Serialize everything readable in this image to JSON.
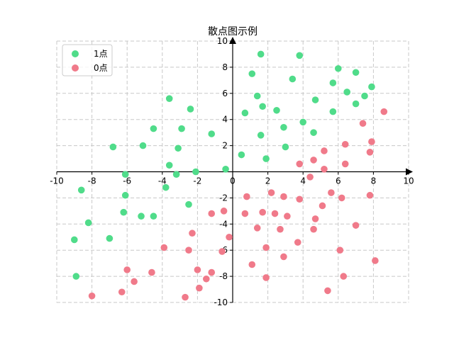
{
  "chart_data": {
    "type": "scatter",
    "title": "散点图示例",
    "xlabel": "",
    "ylabel": "",
    "xlim": [
      -10,
      10
    ],
    "ylim": [
      -10,
      10
    ],
    "x_ticks": [
      -10,
      -8,
      -6,
      -4,
      -2,
      0,
      2,
      4,
      6,
      8,
      10
    ],
    "y_ticks": [
      -10,
      -8,
      -6,
      -4,
      -2,
      0,
      2,
      4,
      6,
      8,
      10
    ],
    "grid": true,
    "legend_position": "top-left",
    "series": [
      {
        "name": "1点",
        "color": "#50dc8a",
        "points": [
          [
            1.6,
            9.0
          ],
          [
            3.8,
            8.9
          ],
          [
            6.0,
            7.9
          ],
          [
            7.0,
            7.6
          ],
          [
            1.1,
            7.5
          ],
          [
            3.4,
            7.1
          ],
          [
            5.7,
            6.8
          ],
          [
            7.9,
            6.5
          ],
          [
            6.5,
            6.1
          ],
          [
            7.5,
            5.8
          ],
          [
            1.4,
            5.8
          ],
          [
            4.7,
            5.5
          ],
          [
            7.0,
            5.2
          ],
          [
            1.7,
            5.0
          ],
          [
            2.5,
            4.7
          ],
          [
            0.7,
            4.5
          ],
          [
            5.7,
            4.6
          ],
          [
            4.0,
            3.8
          ],
          [
            2.9,
            3.4
          ],
          [
            4.6,
            3.0
          ],
          [
            1.6,
            2.8
          ],
          [
            3.0,
            1.9
          ],
          [
            0.5,
            1.3
          ],
          [
            1.9,
            1.0
          ],
          [
            -3.6,
            5.6
          ],
          [
            -2.4,
            4.8
          ],
          [
            -4.5,
            3.3
          ],
          [
            -2.9,
            3.3
          ],
          [
            -1.2,
            2.9
          ],
          [
            -6.8,
            1.9
          ],
          [
            -5.1,
            2.0
          ],
          [
            -3.1,
            1.8
          ],
          [
            -3.6,
            0.5
          ],
          [
            -6.1,
            -0.2
          ],
          [
            -3.2,
            -0.2
          ],
          [
            -2.1,
            0.0
          ],
          [
            -0.4,
            0.2
          ],
          [
            -3.8,
            -1.2
          ],
          [
            -6.1,
            -1.8
          ],
          [
            -8.6,
            -1.4
          ],
          [
            -2.5,
            -2.5
          ],
          [
            -6.2,
            -3.1
          ],
          [
            -5.2,
            -3.4
          ],
          [
            -4.5,
            -3.4
          ],
          [
            -8.2,
            -3.9
          ],
          [
            -7.0,
            -5.1
          ],
          [
            -9.0,
            -5.2
          ],
          [
            -8.9,
            -8.0
          ]
        ]
      },
      {
        "name": "0点",
        "color": "#f07a8a",
        "points": [
          [
            8.6,
            4.6
          ],
          [
            7.4,
            3.7
          ],
          [
            7.9,
            2.3
          ],
          [
            6.4,
            2.1
          ],
          [
            7.8,
            1.5
          ],
          [
            5.2,
            1.6
          ],
          [
            4.6,
            0.9
          ],
          [
            3.8,
            0.6
          ],
          [
            6.4,
            0.6
          ],
          [
            5.2,
            0.2
          ],
          [
            4.4,
            -0.4
          ],
          [
            5.6,
            -1.6
          ],
          [
            6.2,
            -2.0
          ],
          [
            7.8,
            -1.8
          ],
          [
            3.8,
            -2.1
          ],
          [
            2.9,
            -1.9
          ],
          [
            2.2,
            -1.6
          ],
          [
            0.8,
            -1.9
          ],
          [
            5.1,
            -2.6
          ],
          [
            1.7,
            -3.1
          ],
          [
            2.4,
            -3.2
          ],
          [
            3.1,
            -3.4
          ],
          [
            0.7,
            -3.2
          ],
          [
            4.7,
            -3.6
          ],
          [
            1.4,
            -4.3
          ],
          [
            2.7,
            -4.4
          ],
          [
            4.6,
            -4.4
          ],
          [
            7.0,
            -4.1
          ],
          [
            3.7,
            -5.4
          ],
          [
            -0.2,
            -5.0
          ],
          [
            1.9,
            -5.8
          ],
          [
            -0.6,
            -6.1
          ],
          [
            -0.5,
            -3.0
          ],
          [
            -1.2,
            -3.2
          ],
          [
            -2.3,
            -4.7
          ],
          [
            -3.9,
            -5.8
          ],
          [
            -2.5,
            -6.0
          ],
          [
            6.1,
            -6.0
          ],
          [
            2.9,
            -6.5
          ],
          [
            8.1,
            -6.8
          ],
          [
            1.1,
            -7.1
          ],
          [
            -6.0,
            -7.5
          ],
          [
            -4.6,
            -7.7
          ],
          [
            -2.0,
            -7.5
          ],
          [
            -1.2,
            -7.7
          ],
          [
            -1.5,
            -8.2
          ],
          [
            1.9,
            -8.1
          ],
          [
            6.3,
            -8.0
          ],
          [
            -5.6,
            -8.4
          ],
          [
            -1.9,
            -8.9
          ],
          [
            -8.0,
            -9.5
          ],
          [
            -6.3,
            -9.2
          ],
          [
            -2.7,
            -9.6
          ],
          [
            5.4,
            -9.1
          ]
        ]
      }
    ]
  }
}
